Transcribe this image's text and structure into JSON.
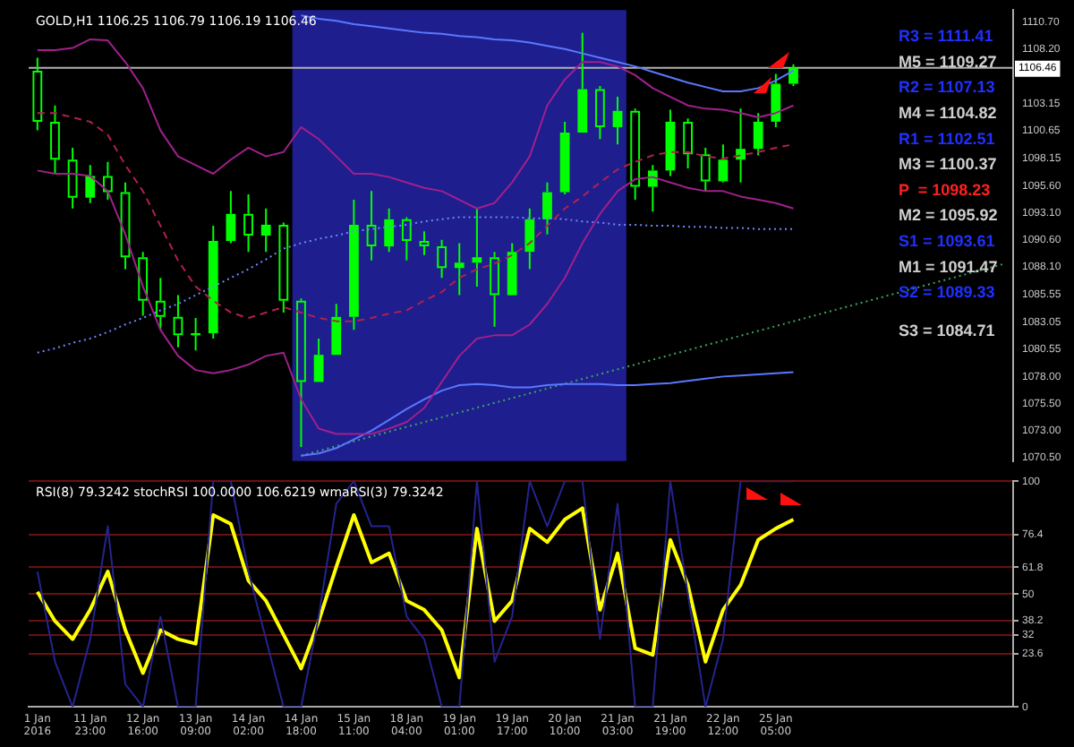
{
  "chart_data": [
    {
      "type": "candlestick",
      "title": "GOLD,H1 1106.25 1106.79 1106.19 1106.46",
      "color": "#00ff00",
      "categories": [
        "1 Jan 2016",
        null,
        null,
        "11 Jan 23:00",
        null,
        null,
        "12 Jan 16:00",
        null,
        null,
        "13 Jan 09:00",
        null,
        null,
        "14 Jan 02:00",
        null,
        null,
        "14 Jan 18:00",
        null,
        null,
        "15 Jan 11:00",
        null,
        null,
        "18 Jan 04:00",
        null,
        null,
        "19 Jan 01:00",
        null,
        null,
        "19 Jan 17:00",
        null,
        null,
        "20 Jan 10:00",
        null,
        null,
        "21 Jan 03:00",
        null,
        null,
        "21 Jan 19:00",
        null,
        null,
        "22 Jan 12:00",
        null,
        null,
        "25 Jan 05:00",
        null,
        null,
        null,
        null,
        null,
        null,
        null,
        null,
        null,
        null,
        null,
        null,
        null
      ],
      "ohlc": [
        [
          1106.2,
          1107.4,
          1100.7,
          1101.5
        ],
        [
          1101.5,
          1103.0,
          1096.7,
          1098.0
        ],
        [
          1098.0,
          1099.1,
          1093.5,
          1094.5
        ],
        [
          1094.5,
          1097.5,
          1094.0,
          1096.5
        ],
        [
          1096.5,
          1097.8,
          1094.3,
          1095.0
        ],
        [
          1095.0,
          1095.9,
          1087.9,
          1089.0
        ],
        [
          1089.0,
          1089.5,
          1083.6,
          1085.0
        ],
        [
          1085.0,
          1087.1,
          1082.3,
          1083.5
        ],
        [
          1083.5,
          1085.5,
          1080.7,
          1081.8
        ],
        [
          1081.8,
          1083.4,
          1080.4,
          1082.0
        ],
        [
          1082.0,
          1091.9,
          1081.5,
          1090.5
        ],
        [
          1090.5,
          1095.1,
          1090.3,
          1093.0
        ],
        [
          1093.0,
          1094.8,
          1089.5,
          1091.0
        ],
        [
          1091.0,
          1093.5,
          1089.5,
          1092.0
        ],
        [
          1092.0,
          1092.2,
          1083.9,
          1085.0
        ],
        [
          1085.0,
          1085.2,
          1071.5,
          1077.5
        ],
        [
          1077.5,
          1081.5,
          1077.5,
          1080.0
        ],
        [
          1080.0,
          1084.7,
          1080.0,
          1083.5
        ],
        [
          1083.5,
          1094.3,
          1082.3,
          1092.0
        ],
        [
          1092.0,
          1095.1,
          1088.7,
          1090.0
        ],
        [
          1090.0,
          1093.5,
          1089.5,
          1092.5
        ],
        [
          1092.5,
          1092.7,
          1088.7,
          1090.5
        ],
        [
          1090.5,
          1091.4,
          1089.2,
          1090.0
        ],
        [
          1090.0,
          1090.6,
          1087.1,
          1088.0
        ],
        [
          1088.0,
          1090.3,
          1085.5,
          1088.5
        ],
        [
          1088.5,
          1093.5,
          1086.3,
          1089.0
        ],
        [
          1089.0,
          1089.5,
          1082.6,
          1085.5
        ],
        [
          1085.5,
          1090.3,
          1085.5,
          1089.5
        ],
        [
          1089.5,
          1093.5,
          1087.9,
          1092.5
        ],
        [
          1092.5,
          1095.9,
          1091.1,
          1095.0
        ],
        [
          1095.0,
          1101.5,
          1094.8,
          1100.5
        ],
        [
          1100.5,
          1109.7,
          1100.5,
          1104.5
        ],
        [
          1104.5,
          1104.8,
          1099.9,
          1101.0
        ],
        [
          1101.0,
          1103.8,
          1099.4,
          1102.5
        ],
        [
          1102.5,
          1102.7,
          1094.3,
          1095.5
        ],
        [
          1095.5,
          1097.5,
          1093.2,
          1097.0
        ],
        [
          1097.0,
          1102.6,
          1096.5,
          1101.5
        ],
        [
          1101.5,
          1101.8,
          1097.2,
          1098.5
        ],
        [
          1098.5,
          1099.1,
          1095.1,
          1096.0
        ],
        [
          1096.0,
          1099.4,
          1095.9,
          1098.0
        ],
        [
          1098.0,
          1102.7,
          1095.9,
          1099.0
        ],
        [
          1099.0,
          1102.3,
          1098.4,
          1101.5
        ],
        [
          1101.5,
          1105.9,
          1101.0,
          1105.0
        ],
        [
          1105.0,
          1106.8,
          1104.8,
          1106.46
        ],
        null,
        null,
        null,
        null,
        null,
        null,
        null,
        null,
        null,
        null,
        null,
        null
      ],
      "series": [
        {
          "type": "line",
          "color": "#a0208c",
          "values": [
            1108.1,
            1108.1,
            1108.3,
            1109.1,
            1109.0,
            1107.0,
            1104.6,
            1100.7,
            1098.3,
            1097.5,
            1096.7,
            1098.0,
            1099.1,
            1098.3,
            1098.7,
            1101.0,
            1099.9,
            1098.3,
            1096.7,
            1096.7,
            1096.4,
            1095.9,
            1095.4,
            1095.1,
            1094.3,
            1093.5,
            1094.0,
            1095.9,
            1098.3,
            1103.0,
            1105.4,
            1107.0,
            1107.0,
            1106.6,
            1105.8,
            1104.6,
            1103.8,
            1103.0,
            1102.7,
            1102.6,
            1102.3,
            1101.9,
            1102.3,
            1103.0,
            null,
            null,
            null,
            null,
            null,
            null,
            null,
            null,
            null,
            null,
            null,
            null
          ]
        },
        {
          "type": "line",
          "color": "#b02050",
          "line_style": "dashed",
          "values": [
            1102.3,
            1102.3,
            1101.9,
            1101.5,
            1100.3,
            1097.5,
            1095.1,
            1091.9,
            1088.7,
            1086.3,
            1085.0,
            1083.9,
            1083.4,
            1083.9,
            1084.4,
            1083.9,
            1083.4,
            1083.1,
            1083.1,
            1083.4,
            1083.8,
            1084.1,
            1085.0,
            1085.8,
            1087.1,
            1087.9,
            1088.4,
            1089.2,
            1090.3,
            1091.9,
            1093.5,
            1094.6,
            1095.9,
            1097.1,
            1097.8,
            1098.4,
            1098.7,
            1098.7,
            1098.3,
            1098.1,
            1098.4,
            1098.7,
            1099.1,
            1099.4,
            null,
            null,
            null,
            null,
            null,
            null,
            null,
            null,
            null,
            null,
            null,
            null
          ]
        },
        {
          "type": "line",
          "color": "#a0208c",
          "values": [
            1097.0,
            1096.7,
            1096.7,
            1096.5,
            1095.1,
            1091.1,
            1086.3,
            1082.3,
            1079.9,
            1078.6,
            1078.3,
            1078.6,
            1079.1,
            1079.9,
            1080.2,
            1075.9,
            1073.2,
            1072.7,
            1072.7,
            1072.7,
            1073.2,
            1073.8,
            1075.1,
            1077.5,
            1079.9,
            1081.5,
            1081.8,
            1081.8,
            1082.8,
            1084.7,
            1087.1,
            1090.3,
            1093.0,
            1095.1,
            1096.2,
            1096.4,
            1095.9,
            1095.4,
            1095.1,
            1095.1,
            1094.6,
            1094.3,
            1094.0,
            1093.5,
            null,
            null,
            null,
            null,
            null,
            null,
            null,
            null,
            null,
            null,
            null,
            null
          ]
        },
        {
          "type": "line",
          "color": "#5a78ff",
          "values": [
            null,
            null,
            null,
            null,
            null,
            null,
            null,
            null,
            null,
            null,
            null,
            null,
            null,
            null,
            null,
            1111.3,
            1111.0,
            1110.8,
            1110.5,
            1110.3,
            1110.1,
            1109.9,
            1109.7,
            1109.6,
            1109.4,
            1109.3,
            1109.1,
            1109.0,
            1108.8,
            1108.5,
            1108.2,
            1107.8,
            1107.4,
            1107.0,
            1106.6,
            1106.1,
            1105.6,
            1105.1,
            1104.7,
            1104.3,
            1104.3,
            1104.6,
            1105.3,
            1106.2,
            null,
            null,
            null,
            null,
            null,
            null,
            null,
            null,
            null,
            null,
            null,
            null
          ]
        },
        {
          "type": "line",
          "color": "#5a78ff",
          "values": [
            null,
            null,
            null,
            null,
            null,
            null,
            null,
            null,
            null,
            null,
            null,
            null,
            null,
            null,
            null,
            1070.7,
            1070.9,
            1071.4,
            1072.2,
            1073.0,
            1074.0,
            1075.0,
            1075.9,
            1076.7,
            1077.2,
            1077.3,
            1077.2,
            1077.0,
            1077.0,
            1077.2,
            1077.3,
            1077.3,
            1077.3,
            1077.2,
            1077.2,
            1077.3,
            1077.4,
            1077.6,
            1077.8,
            1078.0,
            1078.1,
            1078.2,
            1078.3,
            1078.4,
            null,
            null,
            null,
            null,
            null,
            null,
            null,
            null,
            null,
            null,
            null,
            null
          ]
        },
        {
          "type": "line",
          "color": "#7088ff",
          "line_style": "dotted",
          "values": [
            1080.2,
            1080.6,
            1081.1,
            1081.5,
            1082.1,
            1082.8,
            1083.4,
            1084.1,
            1084.7,
            1085.5,
            1086.3,
            1087.1,
            1087.9,
            1088.8,
            1089.8,
            1090.3,
            1090.7,
            1091.0,
            1091.4,
            1091.6,
            1091.8,
            1092.0,
            1092.3,
            1092.5,
            1092.7,
            1092.7,
            1092.7,
            1092.7,
            1092.6,
            1092.6,
            1092.5,
            1092.3,
            1092.2,
            1092.0,
            1092.0,
            1091.9,
            1091.9,
            1091.8,
            1091.8,
            1091.7,
            1091.7,
            1091.6,
            1091.6,
            1091.6,
            null,
            null,
            null,
            null,
            null,
            null,
            null,
            null,
            null,
            null,
            null,
            null
          ]
        },
        {
          "type": "line",
          "color": "#3aa85a",
          "line_style": "dotted",
          "values": [
            null,
            null,
            null,
            null,
            null,
            null,
            null,
            null,
            null,
            null,
            null,
            null,
            null,
            null,
            null,
            1070.7,
            null,
            null,
            null,
            null,
            null,
            null,
            null,
            null,
            null,
            null,
            null,
            null,
            null,
            null,
            null,
            null,
            null,
            null,
            null,
            null,
            null,
            null,
            null,
            null,
            null,
            null,
            null,
            null,
            null,
            null,
            null,
            null,
            null,
            null,
            null,
            null,
            null,
            null,
            null,
            1088.4
          ]
        }
      ],
      "bands": [
        {
          "axis": "x",
          "from": "14 Jan 18:00",
          "to": "21 Jan 03:00",
          "color": "#1e1e8e"
        }
      ],
      "ref_lines": [
        {
          "axis": "y",
          "value": 1106.46,
          "label": "1106.46",
          "color": "#b0b0b0"
        }
      ],
      "annotations": [
        "R3 = 1111.41",
        "M5 = 1109.27",
        "R2 = 1107.13",
        "M4 = 1104.82",
        "R1 = 1102.51",
        "M3 = 1100.37",
        "P  = 1098.23",
        "M2 = 1095.92",
        "S1 = 1093.61",
        "M1 = 1091.47",
        "S2 = 1089.33",
        "S3 = 1084.71"
      ],
      "ylim": [
        1070.2,
        1111.8
      ],
      "yticks": [
        {
          "value": 1110.7,
          "label": "1110.70"
        },
        {
          "value": 1108.2,
          "label": "1108.20"
        },
        {
          "value": 1103.15,
          "label": "1103.15"
        },
        {
          "value": 1100.65,
          "label": "1100.65"
        },
        {
          "value": 1098.15,
          "label": "1098.15"
        },
        {
          "value": 1095.6,
          "label": "1095.60"
        },
        {
          "value": 1093.1,
          "label": "1093.10"
        },
        {
          "value": 1090.6,
          "label": "1090.60"
        },
        {
          "value": 1088.1,
          "label": "1088.10"
        },
        {
          "value": 1085.55,
          "label": "1085.55"
        },
        {
          "value": 1083.05,
          "label": "1083.05"
        },
        {
          "value": 1080.55,
          "label": "1080.55"
        },
        {
          "value": 1078.0,
          "label": "1078.00"
        },
        {
          "value": 1075.5,
          "label": "1075.50"
        },
        {
          "value": 1073.0,
          "label": "1073.00"
        },
        {
          "value": 1070.5,
          "label": "1070.50"
        }
      ],
      "tick_labels": "y",
      "grid": false,
      "legend": false
    },
    {
      "type": "line",
      "title": "RSI(8) 79.3242 stochRSI 100.0000 106.6219 wmaRSI(3) 79.3242",
      "categories": [
        "1 Jan 2016",
        null,
        null,
        "11 Jan 23:00",
        null,
        null,
        "12 Jan 16:00",
        null,
        null,
        "13 Jan 09:00",
        null,
        null,
        "14 Jan 02:00",
        null,
        null,
        "14 Jan 18:00",
        null,
        null,
        "15 Jan 11:00",
        null,
        null,
        "18 Jan 04:00",
        null,
        null,
        "19 Jan 01:00",
        null,
        null,
        "19 Jan 17:00",
        null,
        null,
        "20 Jan 10:00",
        null,
        null,
        "21 Jan 03:00",
        null,
        null,
        "21 Jan 19:00",
        null,
        null,
        "22 Jan 12:00",
        null,
        null,
        "25 Jan 05:00",
        null,
        null,
        null,
        null,
        null,
        null,
        null,
        null,
        null,
        null,
        null,
        null,
        null
      ],
      "series": [
        {
          "color": "#242490",
          "values": [
            60,
            20,
            0,
            30,
            80,
            10,
            0,
            40,
            0,
            0,
            100,
            100,
            60,
            30,
            0,
            0,
            40,
            90,
            100,
            80,
            80,
            40,
            30,
            0,
            0,
            100,
            20,
            40,
            100,
            80,
            100,
            100,
            30,
            90,
            0,
            0,
            100,
            50,
            0,
            30,
            100,
            100,
            100,
            100,
            null,
            null,
            null,
            null,
            null,
            null,
            null,
            null,
            null,
            null,
            null,
            null
          ]
        },
        {
          "color": "#ffff00",
          "values": [
            51,
            38,
            30,
            43,
            60,
            34,
            15,
            34,
            30,
            28,
            85,
            81,
            56,
            47,
            32,
            17,
            38,
            62,
            85,
            64,
            68,
            47,
            43,
            34,
            13,
            79,
            38,
            47,
            79,
            73,
            83,
            88,
            43,
            68,
            26,
            23,
            74,
            54,
            20,
            43,
            54,
            74,
            79,
            83,
            null,
            null,
            null,
            null,
            null,
            null,
            null,
            null,
            null,
            null,
            null,
            null
          ]
        }
      ],
      "ylim": [
        0,
        100
      ],
      "yticks": [
        0,
        23.6,
        32,
        38.2,
        50,
        61.8,
        76.4,
        100
      ],
      "grid": "y",
      "legend": false
    }
  ]
}
